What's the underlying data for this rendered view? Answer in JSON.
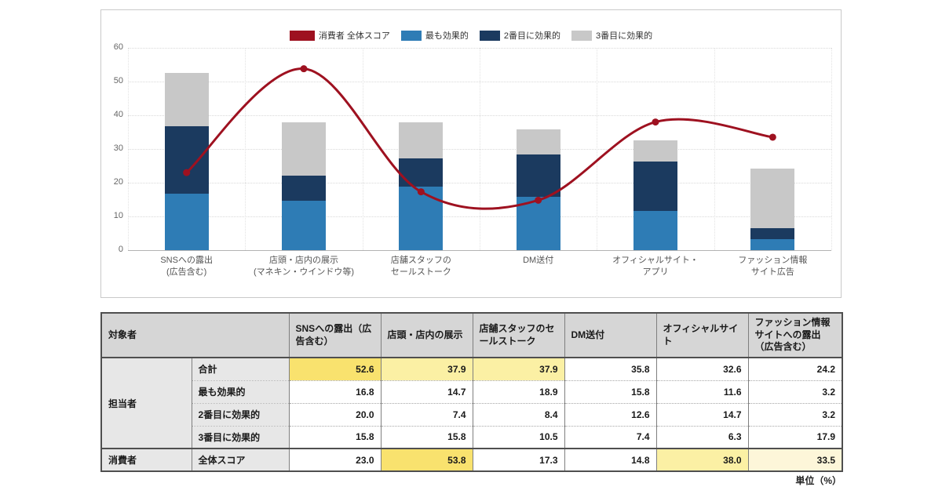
{
  "chart_data": {
    "type": "bar+line",
    "title": "",
    "categories": [
      [
        "SNSへの露出",
        "(広告含む)"
      ],
      [
        "店頭・店内の展示",
        "(マネキン・ウインドウ等)"
      ],
      [
        "店舗スタッフの",
        "セールストーク"
      ],
      [
        "DM送付"
      ],
      [
        "オフィシャルサイト・",
        "アプリ"
      ],
      [
        "ファッション情報",
        "サイト広告"
      ]
    ],
    "series": [
      {
        "name": "最も効果的",
        "type": "bar",
        "color": "#2e7cb5",
        "values": [
          16.8,
          14.7,
          18.9,
          15.8,
          11.6,
          3.2
        ]
      },
      {
        "name": "2番目に効果的",
        "type": "bar",
        "color": "#1b3a5f",
        "values": [
          20.0,
          7.4,
          8.4,
          12.6,
          14.7,
          3.2
        ]
      },
      {
        "name": "3番目に効果的",
        "type": "bar",
        "color": "#c8c8c8",
        "values": [
          15.8,
          15.8,
          10.5,
          7.4,
          6.3,
          17.9
        ]
      },
      {
        "name": "消費者 全体スコア",
        "type": "line",
        "color": "#9e1120",
        "values": [
          23.0,
          53.8,
          17.3,
          14.8,
          38.0,
          33.5
        ]
      }
    ],
    "legend": [
      {
        "label": "消費者 全体スコア",
        "color": "#9e1120",
        "swatch_width": 32
      },
      {
        "label": "最も効果的",
        "color": "#2e7cb5",
        "swatch_width": 26
      },
      {
        "label": "2番目に効果的",
        "color": "#1b3a5f",
        "swatch_width": 26
      },
      {
        "label": "3番目に効果的",
        "color": "#c8c8c8",
        "swatch_width": 26
      }
    ],
    "ylim": [
      0,
      60
    ],
    "yticks": [
      0,
      10,
      20,
      30,
      40,
      50,
      60
    ],
    "grid": true,
    "legend_position": "top"
  },
  "table": {
    "corner_header": "対象者",
    "col_headers": [
      "SNSへの露出（広告含む）",
      "店頭・店内の展示",
      "店舗スタッフのセールストーク",
      "DM送付",
      "オフィシャルサイト",
      "ファッション情報サイトへの露出（広告含む）"
    ],
    "groups": [
      {
        "name": "担当者",
        "rows": [
          {
            "label": "合計",
            "values": [
              "52.6",
              "37.9",
              "37.9",
              "35.8",
              "32.6",
              "24.2"
            ],
            "highlights": [
              "strong",
              "medium",
              "medium",
              "none",
              "none",
              "none"
            ]
          },
          {
            "label": "最も効果的",
            "values": [
              "16.8",
              "14.7",
              "18.9",
              "15.8",
              "11.6",
              "3.2"
            ],
            "highlights": [
              "none",
              "none",
              "none",
              "none",
              "none",
              "none"
            ]
          },
          {
            "label": "2番目に効果的",
            "values": [
              "20.0",
              "7.4",
              "8.4",
              "12.6",
              "14.7",
              "3.2"
            ],
            "highlights": [
              "none",
              "none",
              "none",
              "none",
              "none",
              "none"
            ]
          },
          {
            "label": "3番目に効果的",
            "values": [
              "15.8",
              "15.8",
              "10.5",
              "7.4",
              "6.3",
              "17.9"
            ],
            "highlights": [
              "none",
              "none",
              "none",
              "none",
              "none",
              "none"
            ]
          }
        ]
      },
      {
        "name": "消費者",
        "rows": [
          {
            "label": "全体スコア",
            "values": [
              "23.0",
              "53.8",
              "17.3",
              "14.8",
              "38.0",
              "33.5"
            ],
            "highlights": [
              "none",
              "strong",
              "none",
              "none",
              "medium",
              "pale"
            ]
          }
        ]
      }
    ],
    "highlight_colors": {
      "strong": "#f9e26e",
      "medium": "#fbf0a4",
      "pale": "#fdf6d9",
      "none": ""
    },
    "unit_note": "単位（%）"
  }
}
